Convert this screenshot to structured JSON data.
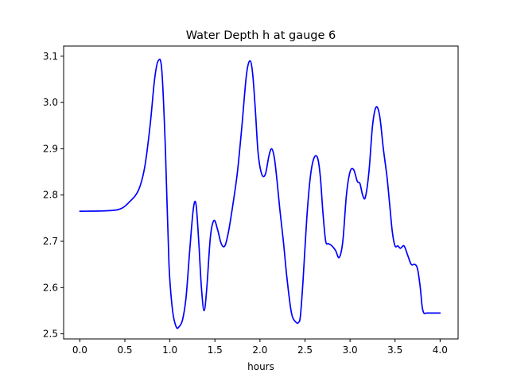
{
  "chart_data": {
    "type": "line",
    "title": "Water Depth h at gauge 6",
    "xlabel": "hours",
    "ylabel": "",
    "xlim": [
      -0.18,
      4.2
    ],
    "ylim": [
      2.489,
      3.122
    ],
    "xticks": [
      0.0,
      0.5,
      1.0,
      1.5,
      2.0,
      2.5,
      3.0,
      3.5,
      4.0
    ],
    "xtick_labels": [
      "0.0",
      "0.5",
      "1.0",
      "1.5",
      "2.0",
      "2.5",
      "3.0",
      "3.5",
      "4.0"
    ],
    "yticks": [
      2.5,
      2.6,
      2.7,
      2.8,
      2.9,
      3.0,
      3.1
    ],
    "ytick_labels": [
      "2.5",
      "2.6",
      "2.7",
      "2.8",
      "2.9",
      "3.0",
      "3.1"
    ],
    "grid": false,
    "legend": "none",
    "series": [
      {
        "color": "#0000ff",
        "x": [
          0.0,
          0.3,
          0.45,
          0.55,
          0.65,
          0.72,
          0.78,
          0.83,
          0.87,
          0.91,
          0.95,
          0.99,
          1.03,
          1.07,
          1.1,
          1.14,
          1.18,
          1.22,
          1.26,
          1.29,
          1.32,
          1.35,
          1.38,
          1.41,
          1.45,
          1.49,
          1.53,
          1.57,
          1.61,
          1.65,
          1.7,
          1.75,
          1.8,
          1.85,
          1.89,
          1.92,
          1.95,
          1.98,
          2.02,
          2.06,
          2.1,
          2.13,
          2.16,
          2.19,
          2.22,
          2.26,
          2.3,
          2.35,
          2.4,
          2.43,
          2.45,
          2.48,
          2.52,
          2.56,
          2.6,
          2.64,
          2.67,
          2.7,
          2.73,
          2.76,
          2.8,
          2.84,
          2.88,
          2.92,
          2.96,
          3.0,
          3.04,
          3.08,
          3.11,
          3.14,
          3.17,
          3.21,
          3.25,
          3.29,
          3.33,
          3.37,
          3.41,
          3.44,
          3.47,
          3.5,
          3.53,
          3.56,
          3.6,
          3.64,
          3.68,
          3.72,
          3.75,
          3.78,
          3.8,
          3.82,
          3.85,
          3.88,
          3.91,
          3.94,
          3.97,
          4.0
        ],
        "y": [
          2.765,
          2.766,
          2.77,
          2.785,
          2.81,
          2.86,
          2.95,
          3.05,
          3.09,
          3.07,
          2.9,
          2.65,
          2.55,
          2.515,
          2.515,
          2.53,
          2.58,
          2.68,
          2.77,
          2.78,
          2.7,
          2.6,
          2.55,
          2.6,
          2.71,
          2.745,
          2.725,
          2.695,
          2.69,
          2.72,
          2.78,
          2.85,
          2.95,
          3.06,
          3.09,
          3.06,
          2.98,
          2.89,
          2.845,
          2.845,
          2.885,
          2.9,
          2.88,
          2.83,
          2.77,
          2.7,
          2.62,
          2.545,
          2.525,
          2.525,
          2.54,
          2.62,
          2.75,
          2.84,
          2.88,
          2.88,
          2.84,
          2.76,
          2.7,
          2.695,
          2.69,
          2.68,
          2.665,
          2.7,
          2.8,
          2.85,
          2.855,
          2.83,
          2.825,
          2.8,
          2.795,
          2.85,
          2.95,
          2.99,
          2.97,
          2.9,
          2.84,
          2.78,
          2.72,
          2.69,
          2.69,
          2.685,
          2.69,
          2.67,
          2.65,
          2.65,
          2.64,
          2.6,
          2.56,
          2.545,
          2.545,
          2.545,
          2.545,
          2.545,
          2.545,
          2.545
        ]
      }
    ]
  }
}
